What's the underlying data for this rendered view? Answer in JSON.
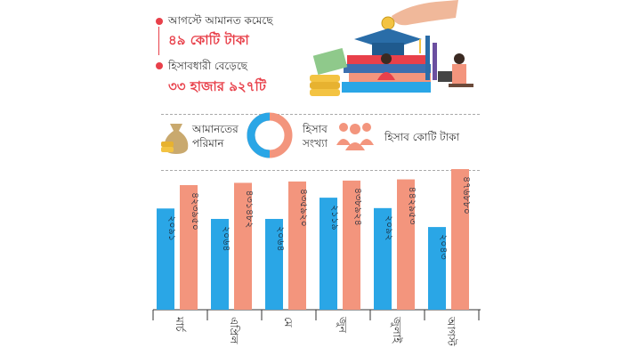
{
  "highlights": [
    {
      "line1": "আগস্টে আমানত কমেছে",
      "line2": "৪৯ কোটি টাকা"
    },
    {
      "line1": "হিসাবধারী বেড়েছে",
      "line2": "৩৩ হাজার ৯২৭টি"
    }
  ],
  "legend": {
    "deposit_label_1": "আমানতের",
    "deposit_label_2": "পরিমান",
    "accounts_label_1": "হিসাব",
    "accounts_label_2": "সংখ্যা",
    "unit_note": "হিসাব কোটি টাকা"
  },
  "colors": {
    "deposit": "#2aa6e6",
    "accounts": "#f3957d",
    "accent": "#e8404a"
  },
  "icons": [
    "money-bag-icon",
    "donut-legend-icon",
    "people-group-icon",
    "education-illustration"
  ],
  "chart_data": {
    "type": "bar",
    "categories": [
      "মার্চ",
      "এপ্রিল",
      "মে",
      "জুন",
      "জুলাই",
      "আগস্ট"
    ],
    "series": [
      {
        "name": "আমানতের পরিমান",
        "values": [
          2091,
          2064,
          2064,
          2119,
          2092,
          2043
        ],
        "labels": [
          "২০৯১",
          "২০৬৪",
          "২০৬৪",
          "২১১৯",
          "২০৯২",
          "২০৪৩"
        ]
      },
      {
        "name": "হিসাব সংখ্যা",
        "values": [
          423950,
          431482,
          435920,
          438924,
          442953,
          476880
        ],
        "labels": [
          "৪২৩৯৫০",
          "৪৩১৪৮২",
          "৪৩৫৯২০",
          "৪৩৮৯২৪",
          "৪৪২৯৫৩",
          "৪৭৬৮৮০"
        ]
      }
    ]
  }
}
